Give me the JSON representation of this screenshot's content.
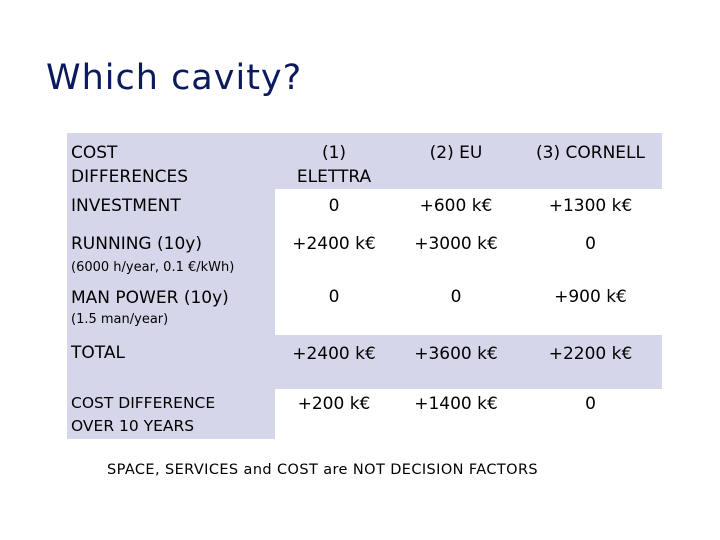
{
  "title": "Which cavity?",
  "table": {
    "header": {
      "row_label": [
        "COST",
        "DIFFERENCES"
      ],
      "columns": [
        [
          "(1)",
          "ELETTRA"
        ],
        [
          "(2) EU"
        ],
        [
          "(3) CORNELL"
        ]
      ]
    },
    "rows": [
      {
        "label": "INVESTMENT",
        "sublabel": "",
        "values": [
          "0",
          "+600 k€",
          "+1300 k€"
        ]
      },
      {
        "label": "RUNNING (10y)",
        "sublabel": "(6000 h/year, 0.1 €/kWh)",
        "values": [
          "+2400 k€",
          "+3000 k€",
          "0"
        ]
      },
      {
        "label": "MAN POWER (10y)",
        "sublabel": "(1.5 man/year)",
        "values": [
          "0",
          "0",
          "+900 k€"
        ]
      },
      {
        "label": "TOTAL",
        "sublabel": "",
        "values": [
          "+2400 k€",
          "+3600 k€",
          "+2200 k€"
        ]
      },
      {
        "label": "COST DIFFERENCE",
        "sublabel": "OVER 10 YEARS",
        "values": [
          "+200 k€",
          "+1400 k€",
          "0"
        ]
      }
    ]
  },
  "footer_note": "SPACE, SERVICES and COST are NOT DECISION FACTORS",
  "colors": {
    "title": "#0b1a5e",
    "shade": "#d6d6ea"
  }
}
